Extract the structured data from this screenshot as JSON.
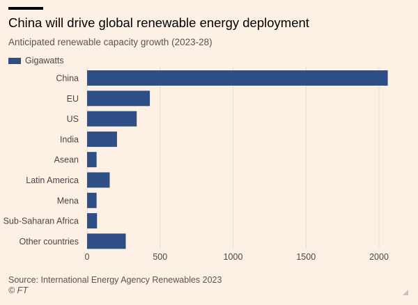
{
  "header": {
    "title": "China will drive global renewable energy deployment",
    "subtitle": "Anticipated renewable capacity growth (2023-28)"
  },
  "footer": {
    "source": "Source: International Energy Agency Renewables 2023",
    "copyright": "© FT"
  },
  "colors": {
    "background": "#fdf1e5",
    "bar": "#2d4f85",
    "grid": "#e6dbd0",
    "text": "#4a4643"
  },
  "chart_data": {
    "type": "bar",
    "orientation": "horizontal",
    "title": "China will drive global renewable energy deployment",
    "subtitle": "Anticipated renewable capacity growth (2023-28)",
    "categories": [
      "China",
      "EU",
      "US",
      "India",
      "Asean",
      "Latin America",
      "Mena",
      "Sub-Saharan Africa",
      "Other countries"
    ],
    "series": [
      {
        "name": "Gigawatts",
        "values": [
          2060,
          430,
          340,
          205,
          65,
          155,
          65,
          68,
          265
        ]
      }
    ],
    "xlim": [
      0,
      2100
    ],
    "xticks": [
      0,
      500,
      1000,
      1500,
      2000
    ],
    "xlabel": "",
    "ylabel": "",
    "grid": true,
    "legend": "top-left"
  }
}
